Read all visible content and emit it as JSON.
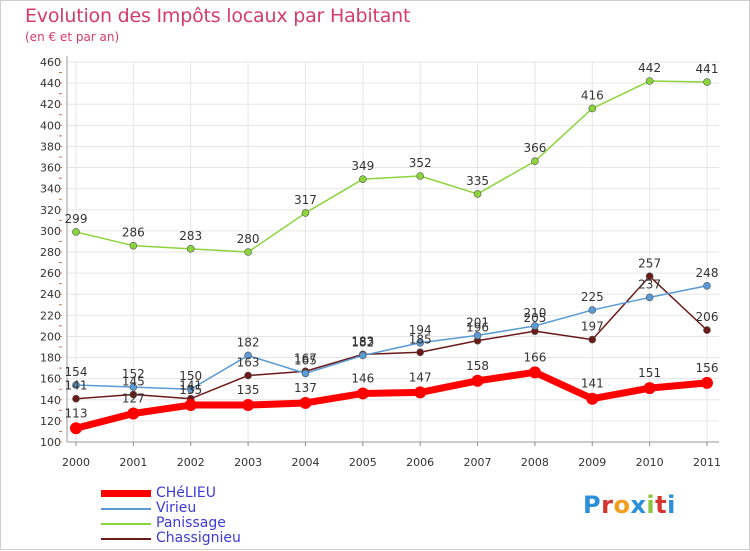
{
  "header": {
    "title": "Evolution des Impôts locaux par Habitant",
    "subtitle": "(en € et par an)"
  },
  "logo": {
    "letters": [
      "P",
      "r",
      "o",
      "x",
      "i",
      "t",
      "i"
    ],
    "colors": [
      "#2b8fd9",
      "#d6342e",
      "#f0a01e",
      "#2b8fd9",
      "#8cc63f",
      "#d6342e",
      "#2b8fd9"
    ]
  },
  "chart_data": {
    "type": "line",
    "title": "Evolution des Impôts locaux par Habitant",
    "subtitle": "(en € et par an)",
    "xlabel": "",
    "ylabel": "",
    "x": [
      "2000",
      "2001",
      "2002",
      "2003",
      "2004",
      "2005",
      "2006",
      "2007",
      "2008",
      "2009",
      "2010",
      "2011"
    ],
    "ylim": [
      100,
      460
    ],
    "ytick_step": 20,
    "yticks": [
      "100",
      "120",
      "140",
      "160",
      "180",
      "200",
      "220",
      "240",
      "260",
      "280",
      "300",
      "320",
      "340",
      "360",
      "380",
      "400",
      "420",
      "440",
      "460"
    ],
    "grid": true,
    "legend_position": "bottom-left",
    "series": [
      {
        "name": "CHéLIEU",
        "color": "#ff0000",
        "width": 7,
        "marker": 6,
        "values": [
          113,
          127,
          135,
          135,
          137,
          146,
          147,
          158,
          166,
          141,
          151,
          156
        ],
        "labels": [
          "113",
          "127",
          "135",
          "135",
          "137",
          "146",
          "147",
          "158",
          "166",
          "141",
          "151",
          "156"
        ]
      },
      {
        "name": "Virieu",
        "color": "#5b9bd5",
        "width": 1.5,
        "marker": 3.5,
        "values": [
          154,
          152,
          150,
          182,
          165,
          182,
          194,
          201,
          210,
          225,
          237,
          248
        ],
        "labels": [
          "154",
          "152",
          "150",
          "182",
          "165",
          "182",
          "194",
          "201",
          "210",
          "225",
          "237",
          "248"
        ]
      },
      {
        "name": "Panissage",
        "color": "#8cd43c",
        "width": 1.5,
        "marker": 3.5,
        "values": [
          299,
          286,
          283,
          280,
          317,
          349,
          352,
          335,
          366,
          416,
          442,
          441
        ],
        "labels": [
          "299",
          "286",
          "283",
          "280",
          "317",
          "349",
          "352",
          "335",
          "366",
          "416",
          "442",
          "441"
        ]
      },
      {
        "name": "Chassignieu",
        "color": "#6b1a1a",
        "width": 1.5,
        "marker": 3.5,
        "values": [
          141,
          145,
          141,
          163,
          167,
          183,
          185,
          196,
          205,
          197,
          257,
          206
        ],
        "labels": [
          "141",
          "145",
          "141",
          "163",
          "167",
          "183",
          "185",
          "196",
          "205",
          "197",
          "257",
          "206"
        ]
      }
    ]
  }
}
